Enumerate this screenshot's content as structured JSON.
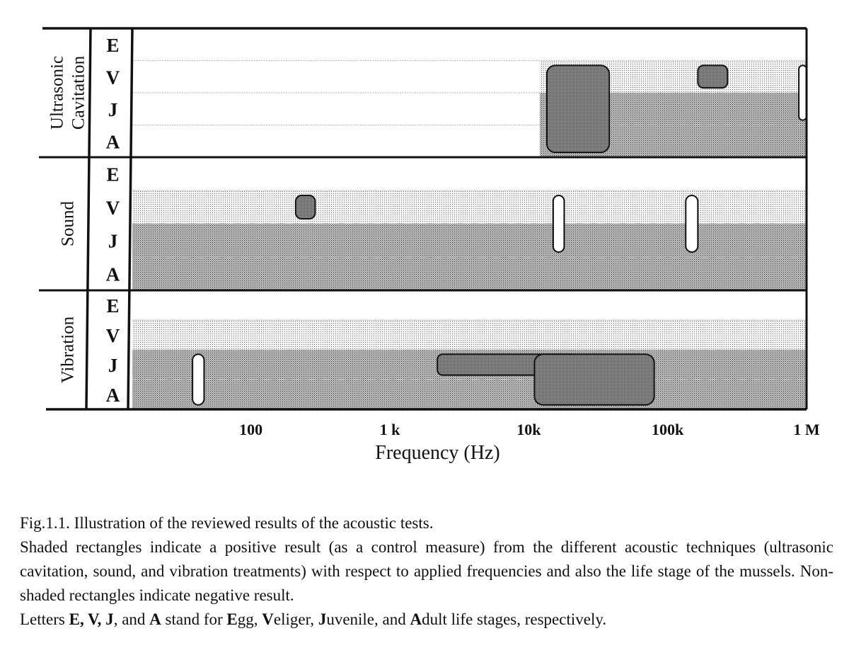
{
  "chart_data": {
    "type": "range-bars",
    "x_scale": "log",
    "xlim": [
      14,
      1000000
    ],
    "xlabel": "Frequency (Hz)",
    "xticks": [
      {
        "value": 100,
        "label": "100"
      },
      {
        "value": 1000,
        "label": "1 k"
      },
      {
        "value": 10000,
        "label": "10k"
      },
      {
        "value": 100000,
        "label": "100k"
      },
      {
        "value": 1000000,
        "label": "1 M"
      }
    ],
    "stages": [
      "E",
      "V",
      "J",
      "A"
    ],
    "groups": [
      {
        "name": "Ultrasonic Cavitation",
        "name_lines": [
          "Ultrasonic",
          "Cavitation"
        ],
        "tested": [
          {
            "stage": "V",
            "from": 12000,
            "to": 1000000
          },
          {
            "stage": "J",
            "from": 12000,
            "to": 1000000
          },
          {
            "stage": "A",
            "from": 12000,
            "to": 1000000
          }
        ],
        "results": [
          {
            "from": 13500,
            "to": 38000,
            "stage_from": "V",
            "stage_to": "A",
            "positive": true
          },
          {
            "from": 165000,
            "to": 270000,
            "stage_from": "V",
            "stage_to": "V",
            "positive": true
          },
          {
            "from": 880000,
            "to": 1000000,
            "stage_from": "V",
            "stage_to": "J",
            "positive": false
          }
        ]
      },
      {
        "name": "Sound",
        "name_lines": [
          "Sound"
        ],
        "tested": [
          {
            "stage": "V",
            "from": 14,
            "to": 1000000
          },
          {
            "stage": "J",
            "from": 14,
            "to": 1000000
          },
          {
            "stage": "A",
            "from": 14,
            "to": 1000000
          }
        ],
        "results": [
          {
            "from": 210,
            "to": 290,
            "stage_from": "V",
            "stage_to": "V",
            "positive": true
          },
          {
            "from": 15000,
            "to": 18000,
            "stage_from": "V",
            "stage_to": "J",
            "positive": false
          },
          {
            "from": 135000,
            "to": 165000,
            "stage_from": "V",
            "stage_to": "J",
            "positive": false
          }
        ]
      },
      {
        "name": "Vibration",
        "name_lines": [
          "Vibration"
        ],
        "tested": [
          {
            "stage": "V",
            "from": 14,
            "to": 1000000
          },
          {
            "stage": "J",
            "from": 14,
            "to": 1000000
          },
          {
            "stage": "A",
            "from": 14,
            "to": 1000000
          }
        ],
        "results": [
          {
            "from": 38,
            "to": 46,
            "stage_from": "J",
            "stage_to": "A",
            "positive": false
          },
          {
            "from": 2200,
            "to": 22000,
            "stage_from": "J",
            "stage_to": "J",
            "positive": true
          },
          {
            "from": 11000,
            "to": 80000,
            "stage_from": "J",
            "stage_to": "A",
            "positive": true
          }
        ]
      }
    ]
  },
  "caption": {
    "title": "Fig.1.1. Illustration of the reviewed results of the acoustic tests.",
    "body": "Shaded rectangles indicate a positive result (as a control measure) from the different acoustic techniques (ultrasonic cavitation, sound, and vibration treatments) with respect to applied frequencies and also the life stage of the mussels. Non-shaded rectangles indicate negative result.",
    "legend_prefix": "Letters ",
    "legend_letters": "E, V, J",
    "legend_and": ", and ",
    "legend_letter_a": "A",
    "legend_mid": " stand for ",
    "stage_egg_initial": "E",
    "stage_egg_rest": "gg, ",
    "stage_veliger_initial": "V",
    "stage_veliger_rest": "eliger, ",
    "stage_juvenile_initial": "J",
    "stage_juvenile_rest": "uvenile, and ",
    "stage_adult_initial": "A",
    "stage_adult_rest": "dult life stages, respectively."
  }
}
